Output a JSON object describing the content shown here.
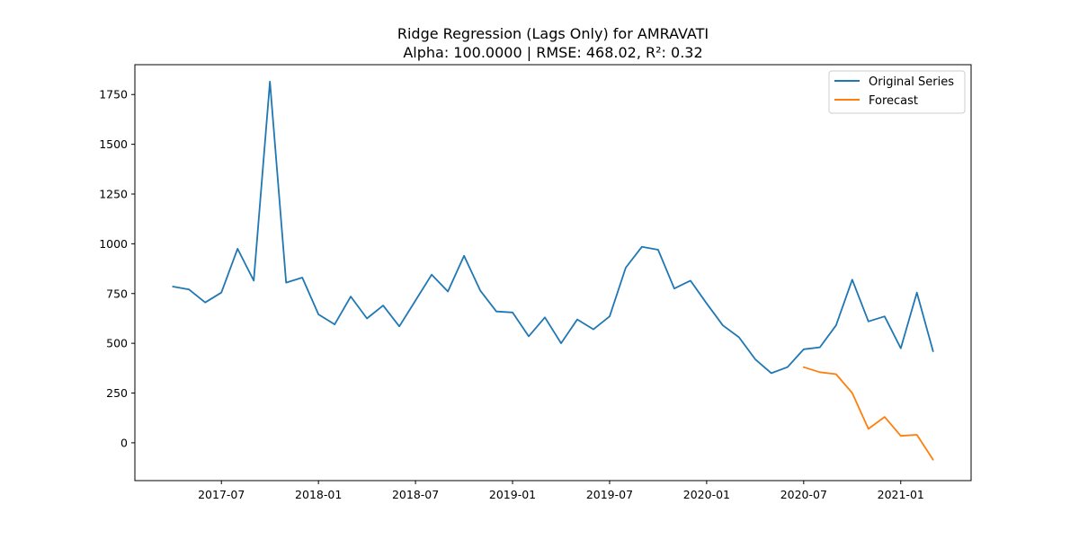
{
  "chart_data": {
    "type": "line",
    "title": "Ridge Regression (Lags Only) for AMRAVATI",
    "subtitle": "Alpha: 100.0000 | RMSE: 468.02, R²: 0.32",
    "xlabel": "",
    "ylabel": "",
    "ylim": [
      -190,
      1900
    ],
    "x_ticks": [
      "2017-07",
      "2018-01",
      "2018-07",
      "2019-01",
      "2019-07",
      "2020-01",
      "2020-07",
      "2021-01"
    ],
    "y_ticks": [
      0,
      250,
      500,
      750,
      1000,
      1250,
      1500,
      1750
    ],
    "grid": false,
    "legend_position": "top-right",
    "series": [
      {
        "name": "Original Series",
        "color": "#1f77b4",
        "x": [
          "2017-04",
          "2017-05",
          "2017-06",
          "2017-07",
          "2017-08",
          "2017-09",
          "2017-10",
          "2017-11",
          "2017-12",
          "2018-01",
          "2018-02",
          "2018-03",
          "2018-04",
          "2018-05",
          "2018-06",
          "2018-07",
          "2018-08",
          "2018-09",
          "2018-10",
          "2018-11",
          "2018-12",
          "2019-01",
          "2019-02",
          "2019-03",
          "2019-04",
          "2019-05",
          "2019-06",
          "2019-07",
          "2019-08",
          "2019-09",
          "2019-10",
          "2019-11",
          "2019-12",
          "2020-01",
          "2020-02",
          "2020-03",
          "2020-04",
          "2020-05",
          "2020-06",
          "2020-07",
          "2020-08",
          "2020-09",
          "2020-10",
          "2020-11",
          "2020-12",
          "2021-01",
          "2021-02",
          "2021-03"
        ],
        "values": [
          785,
          770,
          705,
          755,
          975,
          815,
          1815,
          805,
          830,
          645,
          595,
          735,
          625,
          690,
          585,
          715,
          845,
          760,
          940,
          765,
          660,
          655,
          535,
          630,
          500,
          620,
          570,
          635,
          880,
          985,
          970,
          775,
          815,
          700,
          590,
          530,
          420,
          350,
          380,
          470,
          480,
          590,
          820,
          610,
          635,
          475,
          755,
          460
        ]
      },
      {
        "name": "Forecast",
        "color": "#ff7f0e",
        "x": [
          "2020-07",
          "2020-08",
          "2020-09",
          "2020-10",
          "2020-11",
          "2020-12",
          "2021-01",
          "2021-02",
          "2021-03"
        ],
        "values": [
          380,
          355,
          345,
          250,
          70,
          130,
          35,
          40,
          -85
        ]
      }
    ]
  }
}
